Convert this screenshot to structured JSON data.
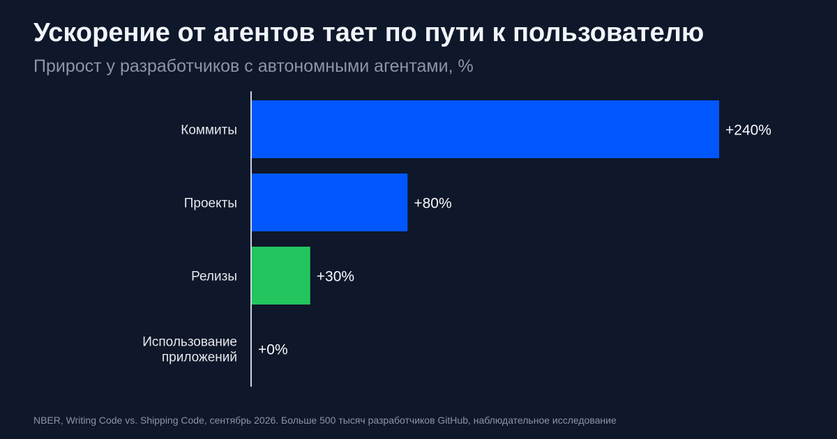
{
  "header": {
    "title": "Ускорение от агентов тает по пути к пользователю",
    "subtitle": "Прирост у разработчиков с автономными агентами, %"
  },
  "chart_data": {
    "type": "bar",
    "orientation": "horizontal",
    "title": "Ускорение от агентов тает по пути к пользователю",
    "subtitle": "Прирост у разработчиков с автономными агентами, %",
    "categories": [
      [
        "Коммиты"
      ],
      [
        "Проекты"
      ],
      [
        "Релизы"
      ],
      [
        "Использование",
        "приложений"
      ]
    ],
    "values": [
      240,
      80,
      30,
      0
    ],
    "value_labels": [
      "+240%",
      "+80%",
      "+30%",
      "+0%"
    ],
    "bar_colors": [
      "#0057ff",
      "#0057ff",
      "#22c55e",
      "#22c55e"
    ],
    "xlim": [
      0,
      240
    ],
    "grid": false
  },
  "footer": {
    "source": "NBER, Writing Code vs. Shipping Code, сентябрь 2026. Больше 500 тысяч разработчиков GitHub, наблюдательное исследование"
  }
}
